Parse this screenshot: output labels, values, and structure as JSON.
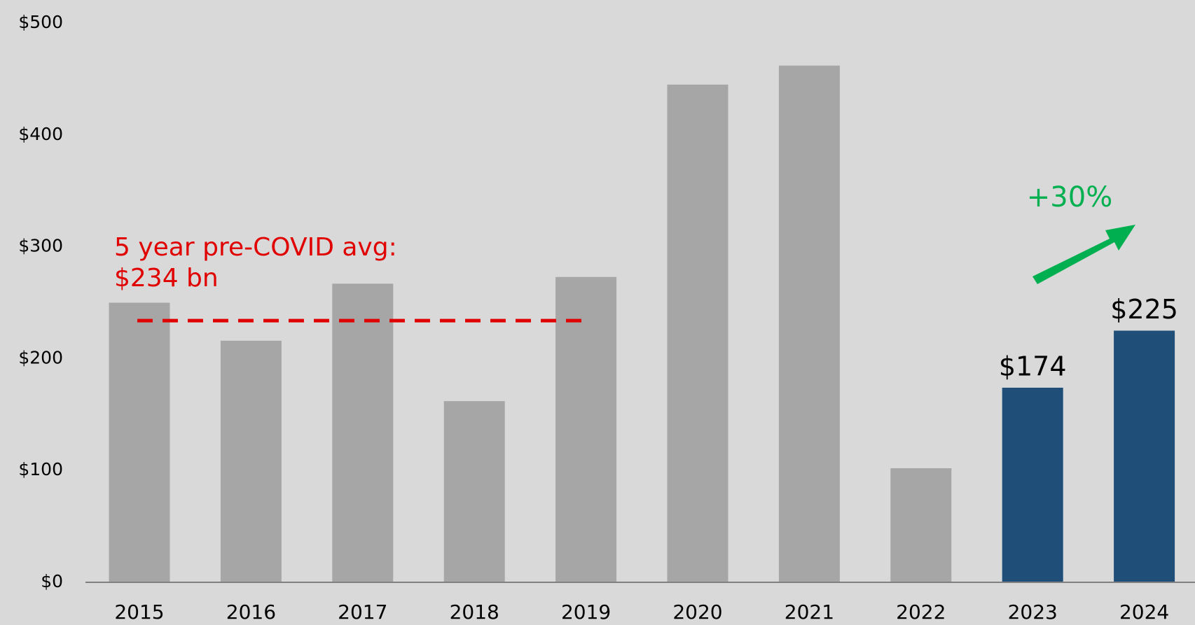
{
  "chart_data": {
    "type": "bar",
    "categories": [
      "2015",
      "2016",
      "2017",
      "2018",
      "2019",
      "2020",
      "2021",
      "2022",
      "2023",
      "2024"
    ],
    "values": [
      250,
      216,
      267,
      162,
      273,
      445,
      462,
      102,
      174,
      225
    ],
    "value_labels": [
      null,
      null,
      null,
      null,
      null,
      null,
      null,
      null,
      "$174",
      "$225"
    ],
    "colors": [
      "#a6a6a6",
      "#a6a6a6",
      "#a6a6a6",
      "#a6a6a6",
      "#a6a6a6",
      "#a6a6a6",
      "#a6a6a6",
      "#a6a6a6",
      "#1f4e79",
      "#1f4e79"
    ],
    "ylim": [
      0,
      500
    ],
    "yticks": [
      {
        "value": 0,
        "label": "$0"
      },
      {
        "value": 100,
        "label": "$100"
      },
      {
        "value": 200,
        "label": "$200"
      },
      {
        "value": 300,
        "label": "$300"
      },
      {
        "value": 400,
        "label": "$400"
      },
      {
        "value": 500,
        "label": "$500"
      }
    ],
    "grid": false,
    "reference_line": {
      "value": 234,
      "label": [
        "5 year pre-COVID avg:",
        "$234 bn"
      ],
      "color": "#e00000",
      "span": [
        "2015",
        "2019"
      ]
    },
    "growth_annotation": {
      "label": "+30%",
      "color": "#00b050"
    }
  }
}
